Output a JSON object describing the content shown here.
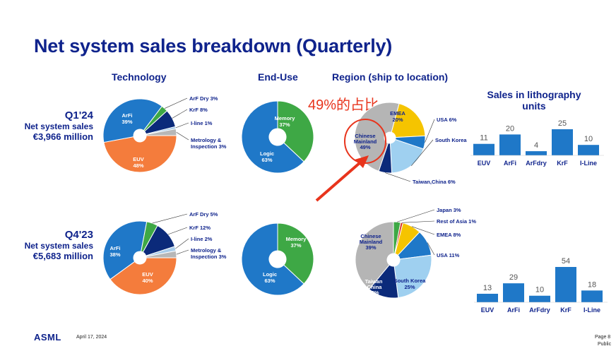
{
  "title": "Net system sales breakdown (Quarterly)",
  "headers": {
    "technology": "Technology",
    "end_use": "End-Use",
    "region": "Region (ship to location)",
    "litho_line1": "Sales in lithography",
    "litho_line2": "units"
  },
  "annotation": "49%的占比",
  "footer": {
    "logo": "ASML",
    "date": "April 17, 2024",
    "page": "Page 8",
    "class": "Public"
  },
  "colors": {
    "title": "#0f238c",
    "euv": "#f47c3c",
    "arfi": "#1f78c8",
    "arf_dry": "#3ea845",
    "krf": "#0b2a7a",
    "iline": "#a8cbe8",
    "metrology": "#b7b7b7",
    "memory": "#3ea845",
    "logic": "#1f78c8",
    "chinese_mainland": "#b5b5b5",
    "emea": "#f5c400",
    "usa": "#1f78c8",
    "south_korea": "#9fd0f0",
    "taiwan": "#0b2a7a",
    "japan": "#3ea845",
    "rest_of_asia": "#d93a2a",
    "bar": "#1f78c8",
    "annotation": "#e8341c"
  },
  "quarters": [
    {
      "name": "Q1'24",
      "sub": "Net system sales",
      "value": "€3,966 million"
    },
    {
      "name": "Q4'23",
      "sub": "Net system sales",
      "value": "€5,683 million"
    }
  ],
  "chart_data": [
    {
      "id": "tech-q1-24",
      "type": "pie",
      "title": "Technology",
      "slices": [
        {
          "name": "EUV",
          "value": 48,
          "label": "EUV",
          "pct": "48%"
        },
        {
          "name": "ArFi",
          "value": 39,
          "label": "ArFi",
          "pct": "39%"
        },
        {
          "name": "ArF Dry",
          "value": 3,
          "label": "ArF Dry 3%"
        },
        {
          "name": "KrF",
          "value": 8,
          "label": "KrF 8%"
        },
        {
          "name": "I-line",
          "value": 1,
          "label": "I-line 1%"
        },
        {
          "name": "Metrology & Inspection",
          "value": 3,
          "label": "Metrology &",
          "label2": "Inspection 3%"
        }
      ]
    },
    {
      "id": "enduse-q1-24",
      "type": "pie",
      "title": "End-Use",
      "slices": [
        {
          "name": "Memory",
          "value": 37,
          "label": "Memory",
          "pct": "37%"
        },
        {
          "name": "Logic",
          "value": 63,
          "label": "Logic",
          "pct": "63%"
        }
      ]
    },
    {
      "id": "region-q1-24",
      "type": "pie",
      "title": "Region (ship to location)",
      "slices": [
        {
          "name": "EMEA",
          "value": 20,
          "label": "EMEA",
          "pct": "20%"
        },
        {
          "name": "USA",
          "value": 6,
          "label": "USA 6%"
        },
        {
          "name": "South Korea",
          "value": 19,
          "label": "South Korea",
          "pct": "19%"
        },
        {
          "name": "Taiwan, China",
          "value": 6,
          "label": "Taiwan,China 6%"
        },
        {
          "name": "Chinese Mainland",
          "value": 49,
          "label": "Chinese",
          "label2": "Mainland",
          "pct": "49%"
        }
      ]
    },
    {
      "id": "litho-q1-24",
      "type": "bar",
      "title": "Sales in lithography units",
      "categories": [
        "EUV",
        "ArFi",
        "ArFdry",
        "KrF",
        "I-Line"
      ],
      "values": [
        11,
        20,
        4,
        25,
        10
      ]
    },
    {
      "id": "tech-q4-23",
      "type": "pie",
      "title": "Technology",
      "slices": [
        {
          "name": "EUV",
          "value": 40,
          "label": "EUV",
          "pct": "40%"
        },
        {
          "name": "ArFi",
          "value": 38,
          "label": "ArFi",
          "pct": "38%"
        },
        {
          "name": "ArF Dry",
          "value": 5,
          "label": "ArF Dry 5%"
        },
        {
          "name": "KrF",
          "value": 12,
          "label": "KrF 12%"
        },
        {
          "name": "I-line",
          "value": 2,
          "label": "I-line 2%"
        },
        {
          "name": "Metrology & Inspection",
          "value": 3,
          "label": "Metrology &",
          "label2": "Inspection 3%"
        }
      ]
    },
    {
      "id": "enduse-q4-23",
      "type": "pie",
      "title": "End-Use",
      "slices": [
        {
          "name": "Memory",
          "value": 37,
          "label": "Memory",
          "pct": "37%"
        },
        {
          "name": "Logic",
          "value": 63,
          "label": "Logic",
          "pct": "63%"
        }
      ]
    },
    {
      "id": "region-q4-23",
      "type": "pie",
      "title": "Region (ship to location)",
      "slices": [
        {
          "name": "Japan",
          "value": 3,
          "label": "Japan 3%"
        },
        {
          "name": "Rest of Asia",
          "value": 1,
          "label": "Rest of Asia 1%"
        },
        {
          "name": "EMEA",
          "value": 8,
          "label": "EMEA 8%"
        },
        {
          "name": "USA",
          "value": 11,
          "label": "USA 11%"
        },
        {
          "name": "South Korea",
          "value": 25,
          "label": "South Korea",
          "pct": "25%"
        },
        {
          "name": "Taiwan, China",
          "value": 13,
          "label": "Taiwan",
          "label2": ",China",
          "pct": "13%"
        },
        {
          "name": "Chinese Mainland",
          "value": 39,
          "label": "Chinese",
          "label2": "Mainland",
          "pct": "39%"
        }
      ]
    },
    {
      "id": "litho-q4-23",
      "type": "bar",
      "title": "Sales in lithography units",
      "categories": [
        "EUV",
        "ArFi",
        "ArFdry",
        "KrF",
        "I-Line"
      ],
      "values": [
        13,
        29,
        10,
        54,
        18
      ]
    }
  ]
}
